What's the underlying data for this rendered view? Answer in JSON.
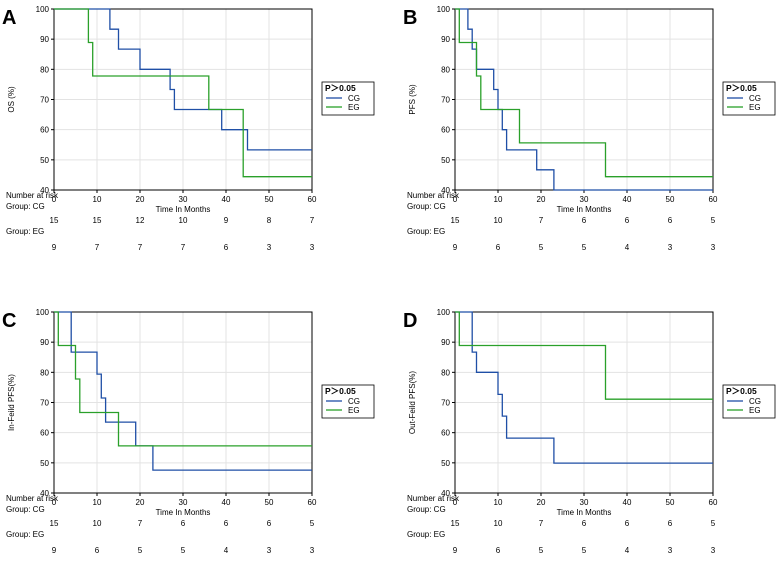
{
  "colors": {
    "CG": "#1f4fa6",
    "EG": "#2aa02a",
    "grid": "#e3e3e3",
    "axis": "#000000"
  },
  "chart_data": [
    {
      "type": "line",
      "letter": "A",
      "ylabel": "OS (%)",
      "xlabel": "Time In Months",
      "xlim": [
        0,
        60
      ],
      "ylim": [
        40,
        100
      ],
      "xticks": [
        "0",
        "10",
        "20",
        "30",
        "40",
        "50",
        "60"
      ],
      "yticks": [
        "40",
        "50",
        "60",
        "70",
        "80",
        "90",
        "100"
      ],
      "legend": {
        "title": "P＞0.05",
        "entries": [
          "CG",
          "EG"
        ]
      },
      "series": [
        {
          "name": "CG",
          "steps": [
            [
              0,
              100
            ],
            [
              13,
              100
            ],
            [
              13,
              93.3
            ],
            [
              15,
              93.3
            ],
            [
              15,
              86.7
            ],
            [
              20,
              86.7
            ],
            [
              20,
              80
            ],
            [
              27,
              80
            ],
            [
              27,
              73.3
            ],
            [
              28,
              73.3
            ],
            [
              28,
              66.7
            ],
            [
              39,
              66.7
            ],
            [
              39,
              60
            ],
            [
              45,
              60
            ],
            [
              45,
              53.3
            ],
            [
              60,
              53.3
            ]
          ]
        },
        {
          "name": "EG",
          "steps": [
            [
              0,
              100
            ],
            [
              8,
              100
            ],
            [
              8,
              88.9
            ],
            [
              9,
              88.9
            ],
            [
              9,
              77.8
            ],
            [
              36,
              77.8
            ],
            [
              36,
              66.7
            ],
            [
              44,
              66.7
            ],
            [
              44,
              44.4
            ],
            [
              60,
              44.4
            ]
          ]
        }
      ],
      "risk": {
        "header": "Number at risk",
        "groups": [
          {
            "label": "Group: CG",
            "values": [
              "15",
              "15",
              "12",
              "10",
              "9",
              "8",
              "7"
            ]
          },
          {
            "label": "Group: EG",
            "values": [
              "9",
              "7",
              "7",
              "7",
              "6",
              "3",
              "3"
            ]
          }
        ]
      }
    },
    {
      "type": "line",
      "letter": "B",
      "ylabel": "PFS (%)",
      "xlabel": "Time In Months",
      "xlim": [
        0,
        60
      ],
      "ylim": [
        40,
        100
      ],
      "xticks": [
        "0",
        "10",
        "20",
        "30",
        "40",
        "50",
        "60"
      ],
      "yticks": [
        "40",
        "50",
        "60",
        "70",
        "80",
        "90",
        "100"
      ],
      "legend": {
        "title": "P＞0.05",
        "entries": [
          "CG",
          "EG"
        ]
      },
      "series": [
        {
          "name": "CG",
          "steps": [
            [
              0,
              100
            ],
            [
              3,
              100
            ],
            [
              3,
              93.3
            ],
            [
              4,
              93.3
            ],
            [
              4,
              86.7
            ],
            [
              5,
              86.7
            ],
            [
              5,
              80
            ],
            [
              9,
              80
            ],
            [
              9,
              73.3
            ],
            [
              10,
              73.3
            ],
            [
              10,
              66.7
            ],
            [
              11,
              66.7
            ],
            [
              11,
              60
            ],
            [
              12,
              60
            ],
            [
              12,
              53.3
            ],
            [
              19,
              53.3
            ],
            [
              19,
              46.7
            ],
            [
              23,
              46.7
            ],
            [
              23,
              40
            ],
            [
              60,
              40
            ]
          ]
        },
        {
          "name": "EG",
          "steps": [
            [
              0,
              100
            ],
            [
              1,
              100
            ],
            [
              1,
              88.9
            ],
            [
              5,
              88.9
            ],
            [
              5,
              77.8
            ],
            [
              6,
              77.8
            ],
            [
              6,
              66.7
            ],
            [
              15,
              66.7
            ],
            [
              15,
              55.6
            ],
            [
              35,
              55.6
            ],
            [
              35,
              44.4
            ],
            [
              60,
              44.4
            ]
          ]
        }
      ],
      "risk": {
        "header": "Number at risk",
        "groups": [
          {
            "label": "Group: CG",
            "values": [
              "15",
              "10",
              "7",
              "6",
              "6",
              "6",
              "5"
            ]
          },
          {
            "label": "Group: EG",
            "values": [
              "9",
              "6",
              "5",
              "5",
              "4",
              "3",
              "3"
            ]
          }
        ]
      }
    },
    {
      "type": "line",
      "letter": "C",
      "ylabel": "In-Feild PFS(%)",
      "xlabel": "Time In Months",
      "xlim": [
        0,
        60
      ],
      "ylim": [
        40,
        100
      ],
      "xticks": [
        "0",
        "10",
        "20",
        "30",
        "40",
        "50",
        "60"
      ],
      "yticks": [
        "40",
        "50",
        "60",
        "70",
        "80",
        "90",
        "100"
      ],
      "legend": {
        "title": "P＞0.05",
        "entries": [
          "CG",
          "EG"
        ]
      },
      "series": [
        {
          "name": "CG",
          "steps": [
            [
              0,
              100
            ],
            [
              4,
              100
            ],
            [
              4,
              86.7
            ],
            [
              10,
              86.7
            ],
            [
              10,
              79.4
            ],
            [
              11,
              79.4
            ],
            [
              11,
              71.5
            ],
            [
              12,
              71.5
            ],
            [
              12,
              63.5
            ],
            [
              19,
              63.5
            ],
            [
              19,
              55.6
            ],
            [
              23,
              55.6
            ],
            [
              23,
              47.6
            ],
            [
              60,
              47.6
            ]
          ]
        },
        {
          "name": "EG",
          "steps": [
            [
              0,
              100
            ],
            [
              1,
              100
            ],
            [
              1,
              88.9
            ],
            [
              5,
              88.9
            ],
            [
              5,
              77.8
            ],
            [
              6,
              77.8
            ],
            [
              6,
              66.7
            ],
            [
              15,
              66.7
            ],
            [
              15,
              55.6
            ],
            [
              60,
              55.6
            ]
          ]
        }
      ],
      "risk": {
        "header": "Number at risk",
        "groups": [
          {
            "label": "Group: CG",
            "values": [
              "15",
              "10",
              "7",
              "6",
              "6",
              "6",
              "5"
            ]
          },
          {
            "label": "Group: EG",
            "values": [
              "9",
              "6",
              "5",
              "5",
              "4",
              "3",
              "3"
            ]
          }
        ]
      }
    },
    {
      "type": "line",
      "letter": "D",
      "ylabel": "Out-Feild PFS(%)",
      "xlabel": "Time In Months",
      "xlim": [
        0,
        60
      ],
      "ylim": [
        40,
        100
      ],
      "xticks": [
        "0",
        "10",
        "20",
        "30",
        "40",
        "50",
        "60"
      ],
      "yticks": [
        "40",
        "50",
        "60",
        "70",
        "80",
        "90",
        "100"
      ],
      "legend": {
        "title": "P＞0.05",
        "entries": [
          "CG",
          "EG"
        ]
      },
      "series": [
        {
          "name": "CG",
          "steps": [
            [
              0,
              100
            ],
            [
              4,
              100
            ],
            [
              4,
              86.7
            ],
            [
              5,
              86.7
            ],
            [
              5,
              80
            ],
            [
              10,
              80
            ],
            [
              10,
              72.7
            ],
            [
              11,
              72.7
            ],
            [
              11,
              65.5
            ],
            [
              12,
              65.5
            ],
            [
              12,
              58.2
            ],
            [
              23,
              58.2
            ],
            [
              23,
              49.9
            ],
            [
              60,
              49.9
            ]
          ]
        },
        {
          "name": "EG",
          "steps": [
            [
              0,
              100
            ],
            [
              1,
              100
            ],
            [
              1,
              88.9
            ],
            [
              35,
              88.9
            ],
            [
              35,
              71.1
            ],
            [
              60,
              71.1
            ]
          ]
        }
      ],
      "risk": {
        "header": "Number at risk",
        "groups": [
          {
            "label": "Group: CG",
            "values": [
              "15",
              "10",
              "7",
              "6",
              "6",
              "6",
              "5"
            ]
          },
          {
            "label": "Group: EG",
            "values": [
              "9",
              "6",
              "5",
              "5",
              "4",
              "3",
              "3"
            ]
          }
        ]
      }
    }
  ]
}
